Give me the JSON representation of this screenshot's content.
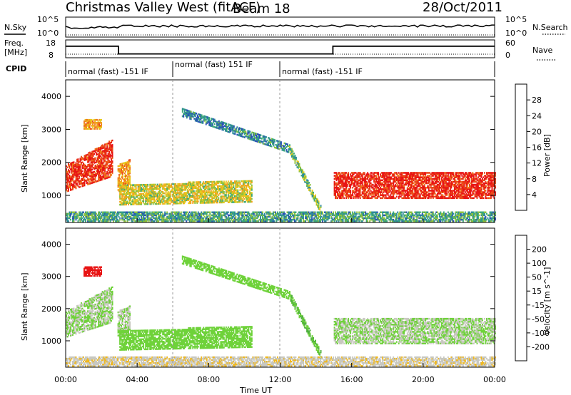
{
  "header": {
    "station": "Christmas Valley West (fitACF)",
    "beam": "Beam 18",
    "date": "28/Oct/2011"
  },
  "panel_labels": {
    "nsky": "N.Sky",
    "nsky_ticks": [
      "10^5",
      "10^0"
    ],
    "nsearch": "N.Search",
    "nsearch_ticks": [
      "10^5",
      "10^0"
    ],
    "freq_l1": "Freq.",
    "freq_l2": "[MHz]",
    "freq_ticks": [
      "18",
      "8"
    ],
    "nave": "Nave",
    "nave_ticks": [
      "60",
      "0"
    ],
    "cpid": "CPID"
  },
  "cpid_segments": [
    {
      "start": "00:00",
      "end": "06:00",
      "label": "normal (fast) -151 IF"
    },
    {
      "start": "06:00",
      "end": "12:00",
      "label": "normal (fast) 151 IF"
    },
    {
      "start": "12:00",
      "end": "24:00",
      "label": "normal (fast) -151 IF"
    }
  ],
  "axes": {
    "ylabel": "Slant Range [km]",
    "yticks": [
      "1000",
      "2000",
      "3000",
      "4000"
    ],
    "xlabel": "Time UT",
    "xticks": [
      "00:00",
      "04:00",
      "08:00",
      "12:00",
      "16:00",
      "20:00",
      "00:00"
    ]
  },
  "colorbars": {
    "power": {
      "label": "Power [dB]",
      "ticks": [
        "4",
        "8",
        "12",
        "16",
        "20",
        "24",
        "28"
      ],
      "colors": [
        "#1515e8",
        "#2a4fb8",
        "#2e8a9a",
        "#3ca87a",
        "#8fc23c",
        "#e8c81e",
        "#f2a51e",
        "#f07a1e",
        "#ea4a1a",
        "#e81414"
      ]
    },
    "velocity": {
      "label": "Velocity [m s^-1]",
      "ticks": [
        "200",
        "100",
        "50",
        "15",
        "-15",
        "-50",
        "-100",
        "-200"
      ],
      "colors": [
        "#1a2a9a",
        "#2a5fb0",
        "#3a8a5a",
        "#50b040",
        "#6fd23a",
        "#c8c8c0",
        "#f0b81e",
        "#f2901e",
        "#ee5a1a",
        "#e81414"
      ]
    }
  },
  "chart_data": {
    "type": "heatmap",
    "x_range_ut_hours": [
      0,
      24
    ],
    "y_range_km": [
      180,
      4500
    ],
    "power_range_db": [
      0,
      30
    ],
    "velocity_range_ms": [
      -250,
      250
    ],
    "frequency_mhz": [
      {
        "start": "00:00",
        "end": "02:57",
        "value": 17
      },
      {
        "start": "02:57",
        "end": "14:57",
        "value": 11
      },
      {
        "start": "14:57",
        "end": "24:00",
        "value": 17
      }
    ],
    "echo_regions": [
      {
        "name": "early-arc",
        "t0": 0.0,
        "t1": 2.6,
        "r0": 1100,
        "r1": 1900,
        "slope_km_per_h": 300,
        "power_db": 27,
        "velocity_ms": 0
      },
      {
        "name": "scatter-3000",
        "t0": 1.0,
        "t1": 2.0,
        "r0": 3000,
        "r1": 3300,
        "slope_km_per_h": 0,
        "power_db": 20,
        "velocity_ms": -220
      },
      {
        "name": "step-3h",
        "t0": 2.9,
        "t1": 3.6,
        "r0": 1100,
        "r1": 1900,
        "slope_km_per_h": 250,
        "power_db": 20,
        "velocity_ms": 0
      },
      {
        "name": "band-1000",
        "t0": 3.0,
        "t1": 10.4,
        "r0": 700,
        "r1": 1300,
        "slope_km_per_h": 20,
        "power_db": 16,
        "velocity_ms": 30
      },
      {
        "name": "diagonal-3500",
        "t0": 6.5,
        "t1": 12.5,
        "r0": 3500,
        "r1": 2400,
        "slope_km_per_h": 0,
        "power_db": 8,
        "velocity_ms": 30
      },
      {
        "name": "descending-streak",
        "t0": 12.5,
        "t1": 14.3,
        "r0": 2400,
        "r1": 500,
        "slope_km_per_h": 0,
        "power_db": 12,
        "velocity_ms": 50
      },
      {
        "name": "night-band",
        "t0": 15.0,
        "t1": 24.0,
        "r0": 900,
        "r1": 1700,
        "slope_km_per_h": 0,
        "power_db": 28,
        "velocity_ms": 0
      },
      {
        "name": "ground-scatter",
        "t0": 0.0,
        "t1": 24.0,
        "r0": 200,
        "r1": 500,
        "slope_km_per_h": 0,
        "power_db": 10,
        "velocity_ms": -40
      }
    ]
  }
}
